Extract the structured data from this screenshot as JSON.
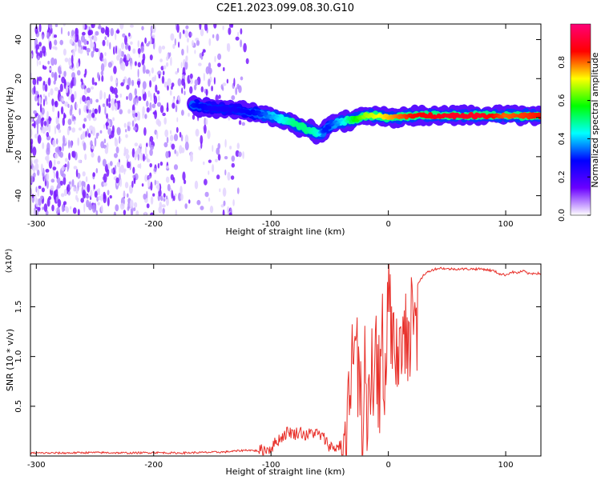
{
  "title": "C2E1.2023.099.08.30.G10",
  "chart_data": [
    {
      "type": "heatmap",
      "xlabel": "Height of straight line (km)",
      "ylabel": "Frequency (Hz)",
      "xlim": [
        -305,
        130
      ],
      "ylim": [
        -50,
        48
      ],
      "x_ticks": [
        -300,
        -200,
        -100,
        0,
        100
      ],
      "y_ticks": [
        -40,
        -20,
        0,
        20,
        40
      ],
      "colorbar": {
        "label": "Normalized spectral amplitude",
        "range": [
          0,
          1
        ],
        "ticks": [
          "0.0",
          "0.2",
          "0.4",
          "0.6",
          "0.8"
        ],
        "tick_values": [
          0.0,
          0.2,
          0.4,
          0.6,
          0.8
        ],
        "colors": [
          "#ffffff",
          "#6a00ff",
          "#0000ff",
          "#00ffff",
          "#00ff00",
          "#ffff00",
          "#ff0000",
          "#ff0077"
        ]
      },
      "noise_region_x": [
        -305,
        -120
      ],
      "ridge": {
        "x": [
          -167,
          -150,
          -130,
          -110,
          -95,
          -80,
          -70,
          -60,
          -55,
          -50,
          -45,
          -40,
          -30,
          -20,
          -10,
          0,
          20,
          50,
          80,
          100,
          130
        ],
        "freq": [
          6,
          5,
          4,
          2,
          0,
          -3,
          -6,
          -8,
          -7,
          -4,
          -3,
          -2,
          -1,
          1,
          1,
          0,
          1,
          1,
          1,
          1,
          1
        ],
        "amplitude": [
          0.3,
          0.25,
          0.25,
          0.3,
          0.4,
          0.5,
          0.5,
          0.45,
          0.3,
          0.3,
          0.35,
          0.4,
          0.55,
          0.65,
          0.7,
          0.75,
          0.85,
          0.9,
          0.9,
          0.8,
          0.85
        ]
      }
    },
    {
      "type": "line",
      "xlabel": "Height of straight line (km)",
      "ylabel": "SNR (10 * v/v)",
      "multiplier": "(x10⁴)",
      "xlim": [
        -305,
        130
      ],
      "ylim": [
        0,
        1.93
      ],
      "x_ticks": [
        -300,
        -200,
        -100,
        0,
        100
      ],
      "y_ticks": [
        0.5,
        1.0,
        1.5
      ],
      "y_tick_labels": [
        "0.5",
        "1.0",
        "1.5"
      ],
      "series": [
        {
          "color": "#e8302a",
          "x": [
            -305,
            -280,
            -250,
            -220,
            -200,
            -180,
            -160,
            -140,
            -130,
            -120,
            -110,
            -100,
            -95,
            -90,
            -85,
            -80,
            -75,
            -70,
            -65,
            -60,
            -55,
            -50,
            -45,
            -40,
            -37,
            -35,
            -33,
            -31,
            -29,
            -27,
            -25,
            -22,
            -20,
            -18,
            -15,
            -12,
            -10,
            -8,
            -5,
            -3,
            0,
            3,
            5,
            8,
            10,
            13,
            15,
            18,
            20,
            23,
            25,
            28,
            30,
            35,
            40,
            45,
            50,
            60,
            70,
            80,
            90,
            95,
            100,
            105,
            110,
            115,
            120,
            125,
            130
          ],
          "y": [
            0.03,
            0.03,
            0.035,
            0.03,
            0.035,
            0.03,
            0.035,
            0.04,
            0.05,
            0.06,
            0.05,
            0.08,
            0.15,
            0.2,
            0.25,
            0.22,
            0.25,
            0.2,
            0.24,
            0.22,
            0.18,
            0.1,
            0.08,
            0.12,
            0.3,
            0.5,
            0.8,
            1.2,
            0.9,
            1.5,
            1.0,
            0.6,
            1.4,
            0.8,
            1.2,
            0.9,
            1.3,
            1.0,
            1.5,
            1.2,
            1.75,
            1.3,
            1.9,
            1.2,
            1.6,
            1.5,
            1.8,
            1.35,
            1.6,
            1.7,
            1.72,
            1.78,
            1.82,
            1.86,
            1.88,
            1.89,
            1.88,
            1.88,
            1.88,
            1.88,
            1.86,
            1.83,
            1.82,
            1.85,
            1.84,
            1.86,
            1.83,
            1.84,
            1.83
          ]
        }
      ]
    }
  ]
}
